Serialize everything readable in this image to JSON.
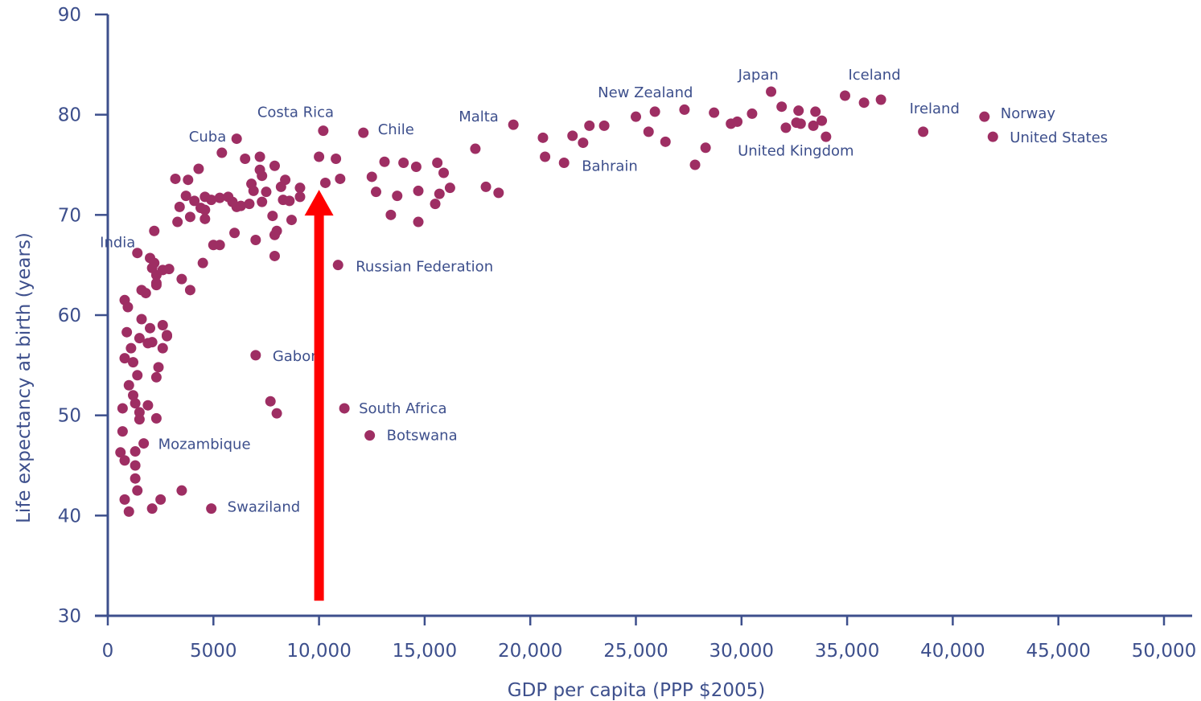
{
  "chart_data": {
    "type": "scatter",
    "xlabel": "GDP per capita (PPP $2005)",
    "ylabel": "Life expectancy at birth (years)",
    "xlim": [
      0,
      50000
    ],
    "ylim": [
      30,
      90
    ],
    "x_ticks": [
      0,
      5000,
      10000,
      15000,
      20000,
      25000,
      30000,
      35000,
      40000,
      45000,
      50000
    ],
    "x_tick_labels": [
      "0",
      "5000",
      "10,000",
      "15,000",
      "20,000",
      "25,000",
      "30,000",
      "35,000",
      "40,000",
      "45,000",
      "50,000"
    ],
    "y_ticks": [
      30,
      40,
      50,
      60,
      70,
      80,
      90
    ],
    "y_tick_labels": [
      "30",
      "40",
      "50",
      "60",
      "70",
      "80",
      "90"
    ],
    "grid": false,
    "colors": {
      "points": "#9e2e63",
      "axes": "#3d4f8c",
      "arrow": "#ff0000"
    },
    "labeled_points": [
      {
        "name": "Costa Rica",
        "x": 10200,
        "y": 78.4,
        "label": "Costa Rica"
      },
      {
        "name": "Cuba",
        "x": 5400,
        "y": 76.2,
        "label": "Cuba"
      },
      {
        "name": "Chile",
        "x": 12100,
        "y": 78.2,
        "label": "Chile"
      },
      {
        "name": "Malta",
        "x": 19200,
        "y": 79.0,
        "label": "Malta"
      },
      {
        "name": "New Zealand",
        "x": 25900,
        "y": 80.3,
        "label": "New Zealand"
      },
      {
        "name": "Japan",
        "x": 31400,
        "y": 82.3,
        "label": "Japan"
      },
      {
        "name": "Iceland",
        "x": 34900,
        "y": 81.9,
        "label": "Iceland"
      },
      {
        "name": "Ireland",
        "x": 38600,
        "y": 78.3,
        "label": "Ireland"
      },
      {
        "name": "Norway",
        "x": 41500,
        "y": 79.8,
        "label": "Norway"
      },
      {
        "name": "United States",
        "x": 41900,
        "y": 77.8,
        "label": "United States"
      },
      {
        "name": "Bahrain",
        "x": 21600,
        "y": 75.2,
        "label": "Bahrain"
      },
      {
        "name": "United Kingdom",
        "x": 32600,
        "y": 79.2,
        "label": "United Kingdom"
      },
      {
        "name": "India",
        "x": 2100,
        "y": 64.7,
        "label": "India"
      },
      {
        "name": "Russian Federation",
        "x": 10900,
        "y": 65.0,
        "label": "Russian Federation"
      },
      {
        "name": "Gabon",
        "x": 7000,
        "y": 56.0,
        "label": "Gabon"
      },
      {
        "name": "South Africa",
        "x": 11200,
        "y": 50.7,
        "label": "South Africa"
      },
      {
        "name": "Botswana",
        "x": 12400,
        "y": 48.0,
        "label": "Botswana"
      },
      {
        "name": "Mozambique",
        "x": 1700,
        "y": 47.2,
        "label": "Mozambique"
      },
      {
        "name": "Swaziland",
        "x": 4900,
        "y": 40.7,
        "label": "Swaziland"
      }
    ],
    "points": [
      [
        800,
        61.5
      ],
      [
        950,
        60.8
      ],
      [
        900,
        58.3
      ],
      [
        1100,
        56.7
      ],
      [
        800,
        55.7
      ],
      [
        1200,
        55.3
      ],
      [
        1400,
        54.0
      ],
      [
        1000,
        53.0
      ],
      [
        1200,
        52.0
      ],
      [
        700,
        50.7
      ],
      [
        1300,
        51.2
      ],
      [
        1500,
        50.3
      ],
      [
        1500,
        49.6
      ],
      [
        700,
        48.4
      ],
      [
        1300,
        46.4
      ],
      [
        600,
        46.3
      ],
      [
        800,
        45.5
      ],
      [
        1300,
        45.0
      ],
      [
        1300,
        43.7
      ],
      [
        1400,
        42.5
      ],
      [
        800,
        41.6
      ],
      [
        1000,
        40.4
      ],
      [
        1400,
        66.2
      ],
      [
        1600,
        62.5
      ],
      [
        1800,
        62.2
      ],
      [
        1600,
        59.6
      ],
      [
        1500,
        57.7
      ],
      [
        1900,
        57.2
      ],
      [
        2000,
        58.7
      ],
      [
        1900,
        51.0
      ],
      [
        2300,
        49.7
      ],
      [
        2500,
        41.6
      ],
      [
        2100,
        40.7
      ],
      [
        3500,
        42.5
      ],
      [
        2200,
        68.4
      ],
      [
        2000,
        65.7
      ],
      [
        2200,
        65.2
      ],
      [
        2300,
        64.0
      ],
      [
        2300,
        63.0
      ],
      [
        2600,
        64.5
      ],
      [
        2900,
        64.6
      ],
      [
        2300,
        63.2
      ],
      [
        2600,
        59.0
      ],
      [
        2800,
        57.9
      ],
      [
        2600,
        56.7
      ],
      [
        2400,
        54.8
      ],
      [
        2300,
        53.8
      ],
      [
        2100,
        57.3
      ],
      [
        2800,
        58.0
      ],
      [
        3200,
        73.6
      ],
      [
        3800,
        73.5
      ],
      [
        4300,
        74.6
      ],
      [
        3400,
        70.8
      ],
      [
        3700,
        71.9
      ],
      [
        4100,
        71.4
      ],
      [
        4600,
        71.8
      ],
      [
        4900,
        71.5
      ],
      [
        5300,
        71.7
      ],
      [
        3300,
        69.3
      ],
      [
        3900,
        69.8
      ],
      [
        4400,
        70.7
      ],
      [
        4600,
        70.5
      ],
      [
        4600,
        69.6
      ],
      [
        3500,
        63.6
      ],
      [
        3900,
        62.5
      ],
      [
        4500,
        65.2
      ],
      [
        5000,
        67.0
      ],
      [
        5300,
        67.0
      ],
      [
        6100,
        77.6
      ],
      [
        6500,
        75.6
      ],
      [
        7200,
        75.8
      ],
      [
        7300,
        73.9
      ],
      [
        7900,
        74.9
      ],
      [
        7200,
        74.5
      ],
      [
        6800,
        73.1
      ],
      [
        6900,
        72.4
      ],
      [
        7500,
        72.3
      ],
      [
        7300,
        71.3
      ],
      [
        6100,
        70.8
      ],
      [
        6300,
        70.9
      ],
      [
        6700,
        71.1
      ],
      [
        5700,
        71.8
      ],
      [
        5900,
        71.3
      ],
      [
        6000,
        68.2
      ],
      [
        7000,
        67.5
      ],
      [
        7900,
        65.9
      ],
      [
        7800,
        69.9
      ],
      [
        8000,
        68.4
      ],
      [
        7900,
        68.0
      ],
      [
        8400,
        73.5
      ],
      [
        8200,
        72.8
      ],
      [
        8300,
        71.5
      ],
      [
        8700,
        69.5
      ],
      [
        9100,
        72.7
      ],
      [
        9100,
        71.8
      ],
      [
        8600,
        71.4
      ],
      [
        7700,
        51.4
      ],
      [
        8000,
        50.2
      ],
      [
        10000,
        75.8
      ],
      [
        10300,
        73.2
      ],
      [
        10800,
        75.6
      ],
      [
        11000,
        73.6
      ],
      [
        12500,
        73.8
      ],
      [
        12700,
        72.3
      ],
      [
        13100,
        75.3
      ],
      [
        13400,
        70.0
      ],
      [
        13700,
        71.9
      ],
      [
        14000,
        75.2
      ],
      [
        14600,
        74.8
      ],
      [
        14700,
        72.4
      ],
      [
        14700,
        69.3
      ],
      [
        15600,
        75.2
      ],
      [
        15900,
        74.2
      ],
      [
        15700,
        72.1
      ],
      [
        16200,
        72.7
      ],
      [
        15500,
        71.1
      ],
      [
        17400,
        76.6
      ],
      [
        17900,
        72.8
      ],
      [
        18500,
        72.2
      ],
      [
        20600,
        77.7
      ],
      [
        20700,
        75.8
      ],
      [
        22000,
        77.9
      ],
      [
        22500,
        77.2
      ],
      [
        22800,
        78.9
      ],
      [
        23500,
        78.9
      ],
      [
        25000,
        79.8
      ],
      [
        25600,
        78.3
      ],
      [
        26400,
        77.3
      ],
      [
        27300,
        80.5
      ],
      [
        28300,
        76.7
      ],
      [
        27800,
        75.0
      ],
      [
        28700,
        80.2
      ],
      [
        29500,
        79.1
      ],
      [
        29800,
        79.3
      ],
      [
        30500,
        80.1
      ],
      [
        31900,
        80.8
      ],
      [
        32100,
        78.7
      ],
      [
        32700,
        80.4
      ],
      [
        32800,
        79.1
      ],
      [
        33400,
        78.9
      ],
      [
        33500,
        80.3
      ],
      [
        33800,
        79.4
      ],
      [
        34000,
        77.8
      ],
      [
        35800,
        81.2
      ],
      [
        36600,
        81.5
      ]
    ],
    "annotations": [
      {
        "type": "arrow",
        "color": "red",
        "x": 10000,
        "y_from": 31.5,
        "y_to": 72.5
      }
    ]
  }
}
